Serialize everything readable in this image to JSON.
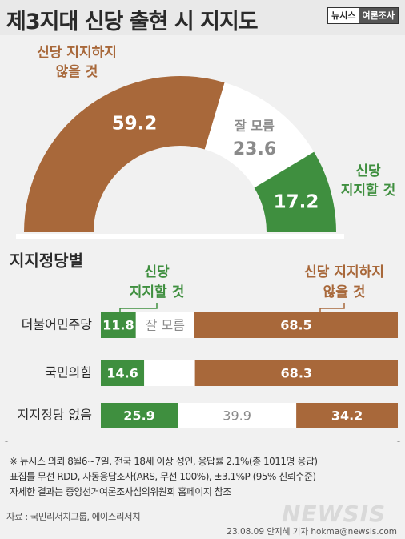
{
  "header": {
    "title": "제3지대 신당 출현 시 지지도",
    "brand_left": "뉴시스",
    "brand_right": "여론조사"
  },
  "colors": {
    "brown": "#a8683a",
    "green": "#3f8f3f",
    "white": "#ffffff",
    "gray_text": "#8a8a8a",
    "background": "#f1f1f1",
    "title_background": "#e9e9e9"
  },
  "chart_data": [
    {
      "type": "pie",
      "style": "half-donut",
      "slices": [
        {
          "label": "신당 지지하지 않을 것",
          "label_lines": [
            "신당 지지하지",
            "않을 것"
          ],
          "value": 59.2,
          "color": "#a8683a"
        },
        {
          "label": "잘 모름",
          "label_lines": [
            "잘 모름"
          ],
          "value": 23.6,
          "color": "#ffffff"
        },
        {
          "label": "신당 지지할 것",
          "label_lines": [
            "신당",
            "지지할 것"
          ],
          "value": 17.2,
          "color": "#3f8f3f"
        }
      ]
    },
    {
      "type": "bar",
      "orientation": "horizontal",
      "stacked": true,
      "title": "지지정당별",
      "categories": [
        "더불어민주당",
        "국민의힘",
        "지지정당 없음"
      ],
      "series": [
        {
          "name": "신당 지지할 것",
          "name_lines": [
            "신당",
            "지지할 것"
          ],
          "color": "#3f8f3f",
          "values": [
            11.8,
            14.6,
            25.9
          ]
        },
        {
          "name": "잘 모름",
          "color": "#ffffff",
          "values": [
            19.7,
            17.1,
            39.9
          ]
        },
        {
          "name": "신당 지지하지 않을 것",
          "name_lines": [
            "신당 지지하지",
            "않을 것"
          ],
          "color": "#a8683a",
          "values": [
            68.5,
            68.3,
            34.2
          ]
        }
      ],
      "data_labels": [
        [
          "11.8",
          "잘 모름",
          "68.5"
        ],
        [
          "14.6",
          "",
          "68.3"
        ],
        [
          "25.9",
          "39.9",
          "34.2"
        ]
      ]
    }
  ],
  "notes": {
    "line1": "※ 뉴시스 의뢰 8월6~7일, 전국 18세 이상 성인, 응답률 2.1%(총 1011명 응답)",
    "line2": "표집틀 무선 RDD, 자동응답조사(ARS, 무선 100%), ±3.1%P (95% 신뢰수준)",
    "line3": "자세한 결과는 중앙선거여론조사심의위원회 홈페이지 참조",
    "source": "자료 : 국민리서치그룹, 에이스리서치",
    "credit": "23.08.09 안지혜 기자 hokma@newsis.com",
    "watermark": "NEWSIS"
  }
}
